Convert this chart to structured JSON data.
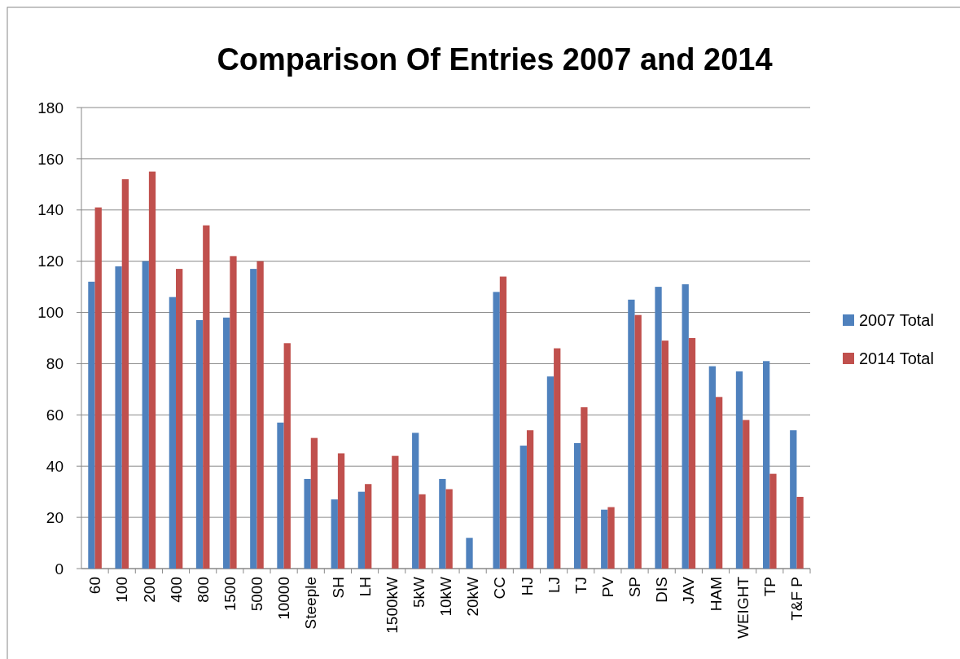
{
  "chart_data": {
    "type": "bar",
    "title": "Comparison Of Entries 2007 and 2014",
    "categories": [
      "60",
      "100",
      "200",
      "400",
      "800",
      "1500",
      "5000",
      "10000",
      "Steeple",
      "SH",
      "LH",
      "1500kW",
      "5kW",
      "10kW",
      "20kW",
      "CC",
      "HJ",
      "LJ",
      "TJ",
      "PV",
      "SP",
      "DIS",
      "JAV",
      "HAM",
      "WEIGHT",
      "TP",
      "T&F P"
    ],
    "series": [
      {
        "name": "2007 Total",
        "color": "#4f81bd",
        "values": [
          112,
          118,
          120,
          106,
          97,
          98,
          117,
          57,
          35,
          27,
          30,
          null,
          53,
          35,
          12,
          108,
          48,
          75,
          49,
          23,
          105,
          110,
          111,
          79,
          77,
          81,
          54
        ]
      },
      {
        "name": "2014 Total",
        "color": "#c0504d",
        "values": [
          141,
          152,
          155,
          117,
          134,
          122,
          120,
          88,
          51,
          45,
          33,
          44,
          29,
          31,
          null,
          114,
          54,
          86,
          63,
          24,
          99,
          89,
          90,
          67,
          58,
          37,
          28
        ]
      }
    ],
    "ylim": [
      0,
      180
    ],
    "yticks": [
      0,
      20,
      40,
      60,
      80,
      100,
      120,
      140,
      160,
      180
    ],
    "grid": "y",
    "legend": "right"
  }
}
